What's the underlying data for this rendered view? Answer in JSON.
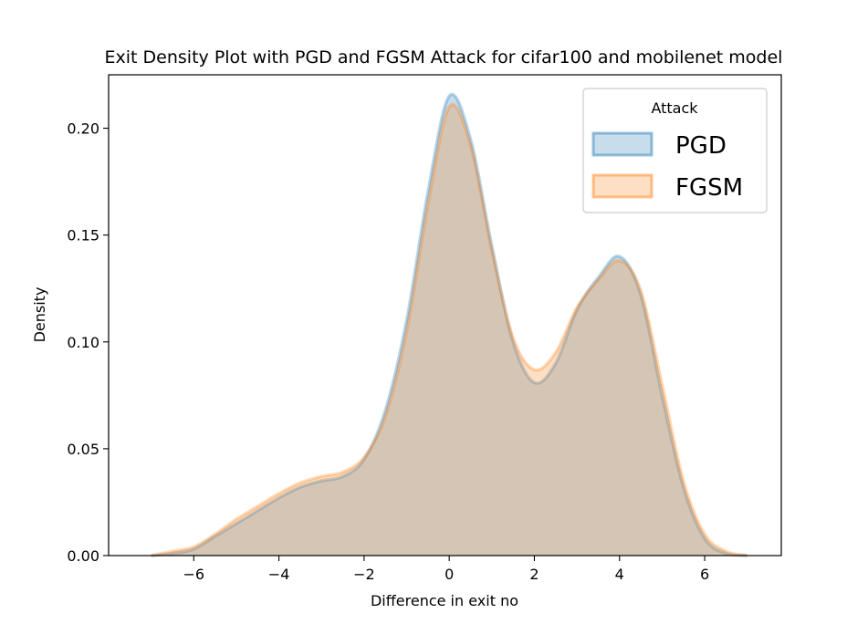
{
  "chart_data": {
    "type": "area",
    "title": "Exit Density Plot with PGD and FGSM Attack for cifar100 and  mobilenet model",
    "xlabel": "Difference in exit no",
    "ylabel": "Density",
    "xlim": [
      -8.0,
      7.8
    ],
    "ylim": [
      0,
      0.225
    ],
    "x_ticks": [
      -6,
      -4,
      -2,
      0,
      2,
      4,
      6
    ],
    "x_tick_labels": [
      "−6",
      "−4",
      "−2",
      "0",
      "2",
      "4",
      "6"
    ],
    "y_ticks": [
      0.0,
      0.05,
      0.1,
      0.15,
      0.2
    ],
    "y_tick_labels": [
      "0.00",
      "0.05",
      "0.10",
      "0.15",
      "0.20"
    ],
    "grid": false,
    "legend": {
      "title": "Attack",
      "position": "top-right"
    },
    "x": [
      -7.0,
      -6.5,
      -6.0,
      -5.5,
      -5.0,
      -4.5,
      -4.0,
      -3.5,
      -3.0,
      -2.5,
      -2.0,
      -1.5,
      -1.0,
      -0.5,
      0.0,
      0.5,
      1.0,
      1.5,
      2.0,
      2.5,
      3.0,
      3.5,
      4.0,
      4.5,
      5.0,
      5.5,
      6.0,
      6.5,
      7.0
    ],
    "series": [
      {
        "name": "PGD",
        "color": "#1f77b4",
        "values": [
          0.0,
          0.001,
          0.003,
          0.009,
          0.015,
          0.021,
          0.027,
          0.032,
          0.035,
          0.037,
          0.045,
          0.068,
          0.11,
          0.17,
          0.215,
          0.195,
          0.145,
          0.1,
          0.081,
          0.09,
          0.115,
          0.13,
          0.14,
          0.122,
          0.075,
          0.032,
          0.008,
          0.001,
          0.0
        ]
      },
      {
        "name": "FGSM",
        "color": "#ff7f0e",
        "values": [
          0.0,
          0.002,
          0.004,
          0.01,
          0.017,
          0.023,
          0.029,
          0.034,
          0.037,
          0.039,
          0.046,
          0.065,
          0.105,
          0.164,
          0.21,
          0.192,
          0.143,
          0.102,
          0.087,
          0.095,
          0.116,
          0.129,
          0.138,
          0.124,
          0.08,
          0.035,
          0.01,
          0.002,
          0.0
        ]
      }
    ]
  }
}
